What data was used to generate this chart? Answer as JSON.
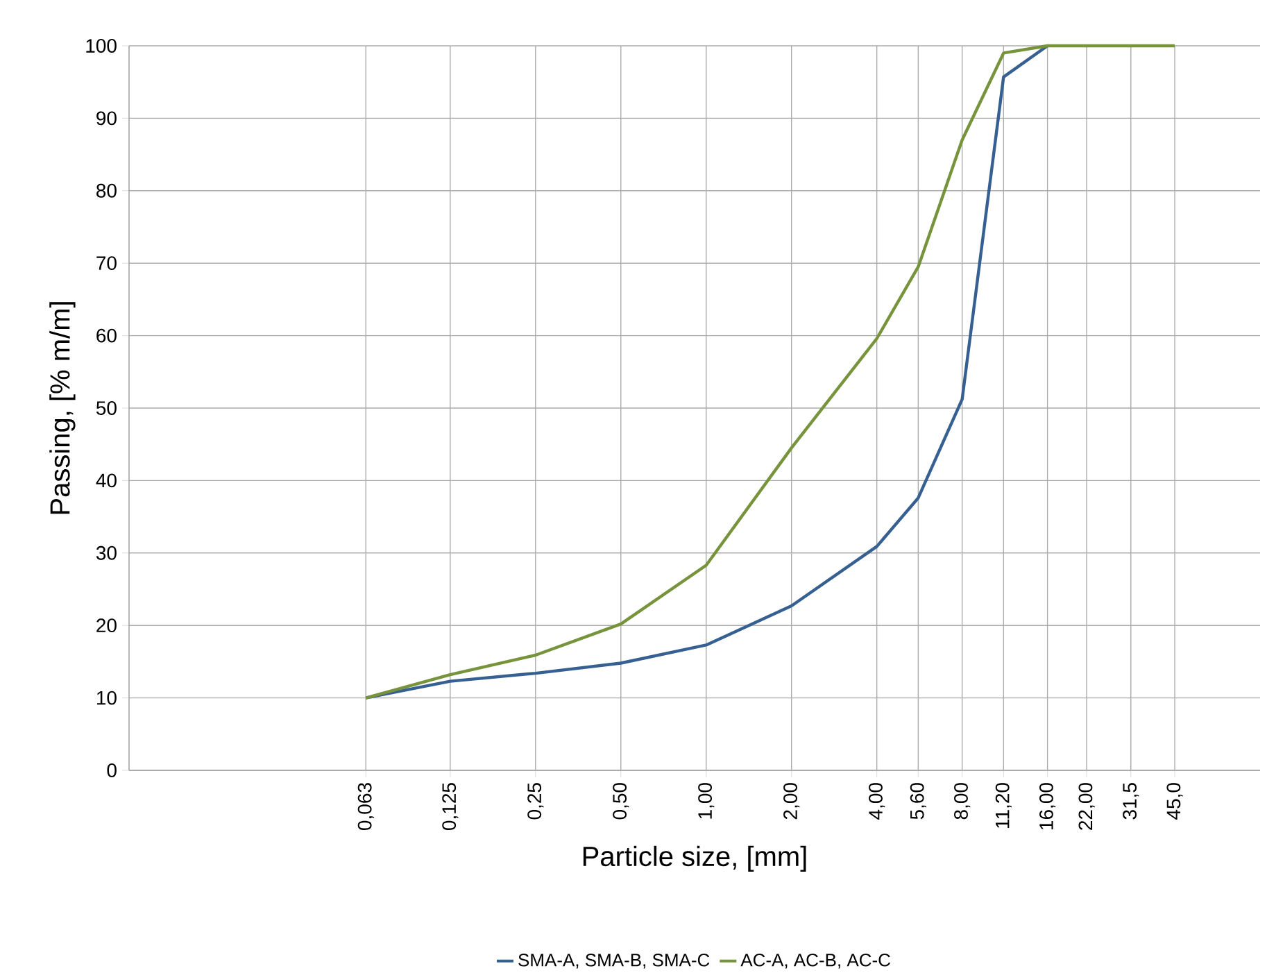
{
  "chart_data": {
    "type": "line",
    "xlabel": "Particle size, [mm]",
    "ylabel": "Passing, [% m/m]",
    "log": "x",
    "grid": true,
    "legend": "bottom",
    "xlim": [
      0.0092,
      90
    ],
    "ylim": [
      0,
      100
    ],
    "xticks": [
      {
        "value": 0.063,
        "label": "0,063"
      },
      {
        "value": 0.125,
        "label": "0,125"
      },
      {
        "value": 0.25,
        "label": "0,25"
      },
      {
        "value": 0.5,
        "label": "0,50"
      },
      {
        "value": 1,
        "label": "1,00"
      },
      {
        "value": 2,
        "label": "2,00"
      },
      {
        "value": 4,
        "label": "4,00"
      },
      {
        "value": 5.6,
        "label": "5,60"
      },
      {
        "value": 8,
        "label": "8,00"
      },
      {
        "value": 11.2,
        "label": "11,20"
      },
      {
        "value": 16,
        "label": "16,00"
      },
      {
        "value": 22,
        "label": "22,00"
      },
      {
        "value": 31.5,
        "label": "31,5"
      },
      {
        "value": 45,
        "label": "45,0"
      }
    ],
    "yticks": [
      0,
      10,
      20,
      30,
      40,
      50,
      60,
      70,
      80,
      90,
      100
    ],
    "series": [
      {
        "name": "SMA-A, SMA-B, SMA-C",
        "color": "#376092",
        "x": [
          0.063,
          0.125,
          0.25,
          0.5,
          1,
          2,
          4,
          5.6,
          8,
          11.2,
          16
        ],
        "values": [
          10,
          12.3,
          13.4,
          14.8,
          17.3,
          22.7,
          30.9,
          37.6,
          51.2,
          95.7,
          100
        ]
      },
      {
        "name": "AC-A, AC-B, AC-C",
        "color": "#77933c",
        "x": [
          0.063,
          0.125,
          0.25,
          0.5,
          1,
          2,
          4,
          5.6,
          8,
          11.2,
          16,
          22,
          31.5,
          45
        ],
        "values": [
          10,
          13.2,
          15.9,
          20.2,
          28.3,
          44.5,
          59.6,
          69.5,
          87.0,
          99.0,
          100,
          100,
          100,
          100
        ]
      }
    ]
  }
}
